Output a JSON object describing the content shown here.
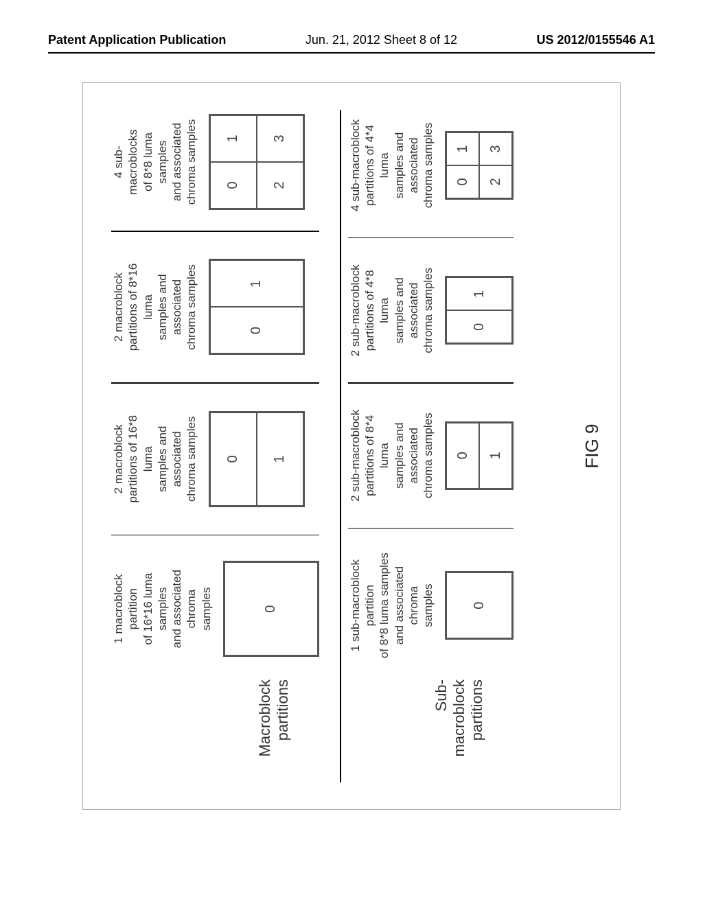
{
  "header": {
    "left": "Patent Application Publication",
    "center": "Jun. 21, 2012  Sheet 8 of 12",
    "right": "US 2012/0155546 A1"
  },
  "figure": {
    "label": "FIG 9",
    "rows": [
      {
        "row_label": "Macroblock\npartitions",
        "grid_size": "large",
        "cells": [
          {
            "caption": "1 macroblock partition\nof 16*16 luma samples\nand associated chroma\nsamples",
            "split": "none",
            "numbers": [
              "0"
            ]
          },
          {
            "caption": "2 macroblock\npartitions of 16*8 luma\nsamples and associated\nchroma samples",
            "split": "horiz",
            "numbers": [
              "0",
              "1"
            ]
          },
          {
            "caption": "2 macroblock\npartitions of 8*16 luma\nsamples and associated\nchroma samples",
            "split": "vert",
            "numbers": [
              "0",
              "1"
            ]
          },
          {
            "caption": "4 sub- macroblocks\nof 8*8 luma samples\nand associated\nchroma samples",
            "split": "quad",
            "numbers": [
              "0",
              "1",
              "2",
              "3"
            ]
          }
        ]
      },
      {
        "row_label": "Sub-macroblock\npartitions",
        "grid_size": "small",
        "cells": [
          {
            "caption": "1 sub-macroblock partition\nof 8*8 luma samples\nand associated chroma\nsamples",
            "split": "none",
            "numbers": [
              "0"
            ]
          },
          {
            "caption": "2 sub-macroblock\npartitions of 8*4 luma\nsamples and associated\nchroma samples",
            "split": "horiz",
            "numbers": [
              "0",
              "1"
            ]
          },
          {
            "caption": "2 sub-macroblock\npartitions of 4*8 luma\nsamples and associated\nchroma samples",
            "split": "vert",
            "numbers": [
              "0",
              "1"
            ]
          },
          {
            "caption": "4 sub-macroblock\npartitions of 4*4 luma\nsamples and associated\nchroma samples",
            "split": "quad",
            "numbers": [
              "0",
              "1",
              "2",
              "3"
            ]
          }
        ]
      }
    ]
  },
  "colors": {
    "border": "#555555",
    "text": "#333333",
    "rule": "#000000",
    "frame": "#aaaaaa",
    "background": "#ffffff"
  }
}
